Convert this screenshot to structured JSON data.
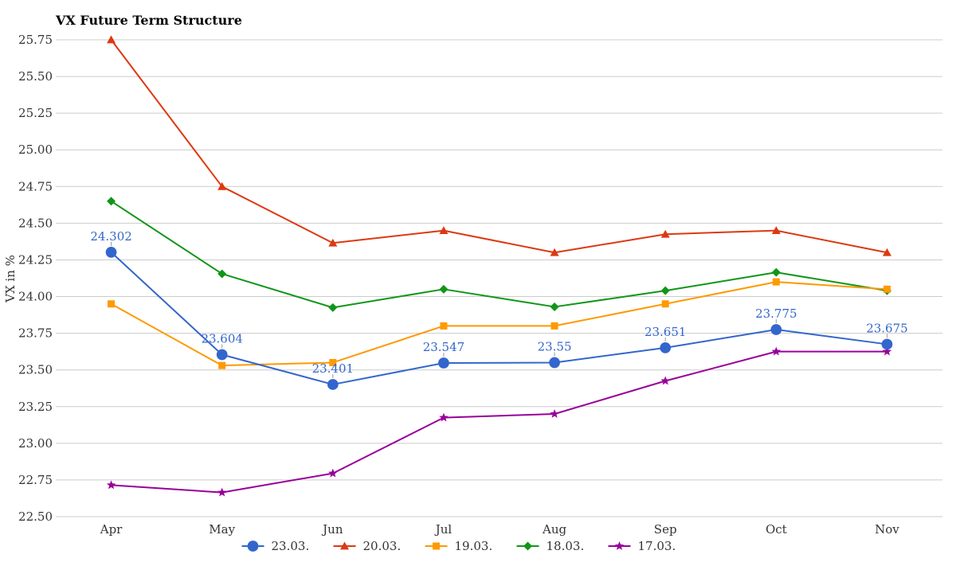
{
  "chart_data": {
    "type": "line",
    "title": "VX Future Term Structure",
    "xlabel": "",
    "ylabel": "VX in %",
    "categories": [
      "Apr",
      "May",
      "Jun",
      "Jul",
      "Aug",
      "Sep",
      "Oct",
      "Nov"
    ],
    "ylim": [
      22.5,
      25.75
    ],
    "ytick_step": 0.25,
    "grid": true,
    "legend_position": "bottom",
    "series": [
      {
        "name": "23.03.",
        "color": "#3366cc",
        "marker": "circle",
        "values": [
          24.302,
          23.604,
          23.401,
          23.547,
          23.55,
          23.651,
          23.775,
          23.675
        ],
        "data_labels": [
          "24.302",
          "23.604",
          "23.401",
          "23.547",
          "23.55",
          "23.651",
          "23.775",
          "23.675"
        ]
      },
      {
        "name": "20.03.",
        "color": "#dc3912",
        "marker": "triangle",
        "values": [
          25.75,
          24.75,
          24.365,
          24.45,
          24.3,
          24.425,
          24.45,
          24.3
        ]
      },
      {
        "name": "19.03.",
        "color": "#ff9900",
        "marker": "square",
        "values": [
          23.95,
          23.53,
          23.55,
          23.8,
          23.8,
          23.95,
          24.1,
          24.05
        ]
      },
      {
        "name": "18.03.",
        "color": "#109618",
        "marker": "diamond",
        "values": [
          24.65,
          24.155,
          23.925,
          24.05,
          23.93,
          24.04,
          24.165,
          24.04
        ]
      },
      {
        "name": "17.03.",
        "color": "#990099",
        "marker": "star",
        "values": [
          22.715,
          22.665,
          22.795,
          23.175,
          23.2,
          23.425,
          23.625,
          23.625
        ]
      }
    ]
  }
}
